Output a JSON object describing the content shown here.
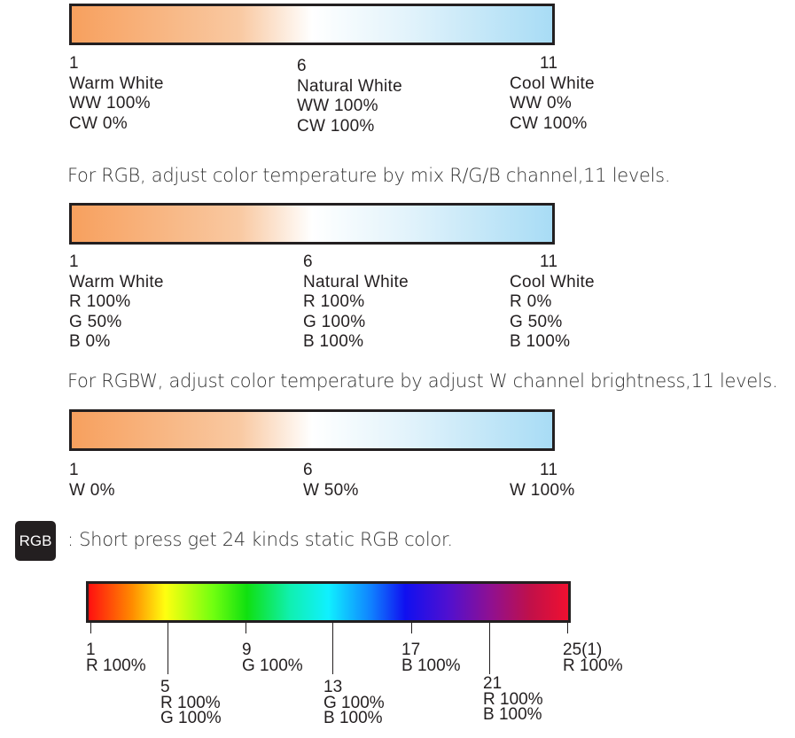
{
  "section_ww_cw": {
    "gradient": [
      "#f7a05e",
      "#ffffff",
      "#a8dcf5"
    ],
    "labels": [
      {
        "lines": [
          "1",
          "Warm White",
          "WW 100%",
          "CW  0%"
        ]
      },
      {
        "lines": [
          "6",
          "Natural White",
          "WW 100%",
          "CW  100%"
        ]
      },
      {
        "lines": [
          "11",
          "Cool White",
          "WW 0%",
          "CW 100%"
        ]
      }
    ]
  },
  "para_rgb": "For RGB, adjust color temperature by mix R/G/B channel,11 levels.",
  "section_rgb": {
    "labels": [
      {
        "lines": [
          "1",
          "Warm White",
          "R 100%",
          "G 50%",
          "B 0%"
        ]
      },
      {
        "lines": [
          "6",
          "Natural White",
          "R 100%",
          "G 100%",
          "B 100%"
        ]
      },
      {
        "lines": [
          "11",
          "Cool White",
          "R 0%",
          "G 50%",
          "B 100%"
        ]
      }
    ]
  },
  "para_rgbw": "For RGBW, adjust color temperature by adjust W channel brightness,11 levels.",
  "section_rgbw": {
    "labels": [
      {
        "lines": [
          "1",
          "W 0%"
        ]
      },
      {
        "lines": [
          "6",
          "W 50%"
        ]
      },
      {
        "lines": [
          "11",
          "W 100%"
        ]
      }
    ]
  },
  "rgb_button": {
    "label": "RGB",
    "description": ": Short press get 24 kinds static RGB color."
  },
  "rainbow": {
    "colors": [
      "#ff1010",
      "#ffff10",
      "#10e010",
      "#10f0ff",
      "#1010f0",
      "#901090",
      "#f01030"
    ],
    "labels": [
      {
        "lines": [
          "1",
          "R 100%"
        ]
      },
      {
        "lines": [
          "5",
          "R 100%",
          "G 100%"
        ]
      },
      {
        "lines": [
          "9",
          "G 100%"
        ]
      },
      {
        "lines": [
          "13",
          "G 100%",
          "B 100%"
        ]
      },
      {
        "lines": [
          "17",
          "B 100%"
        ]
      },
      {
        "lines": [
          "21",
          "R 100%",
          "B 100%"
        ]
      },
      {
        "lines": [
          "25(1)",
          "R 100%"
        ]
      }
    ]
  }
}
